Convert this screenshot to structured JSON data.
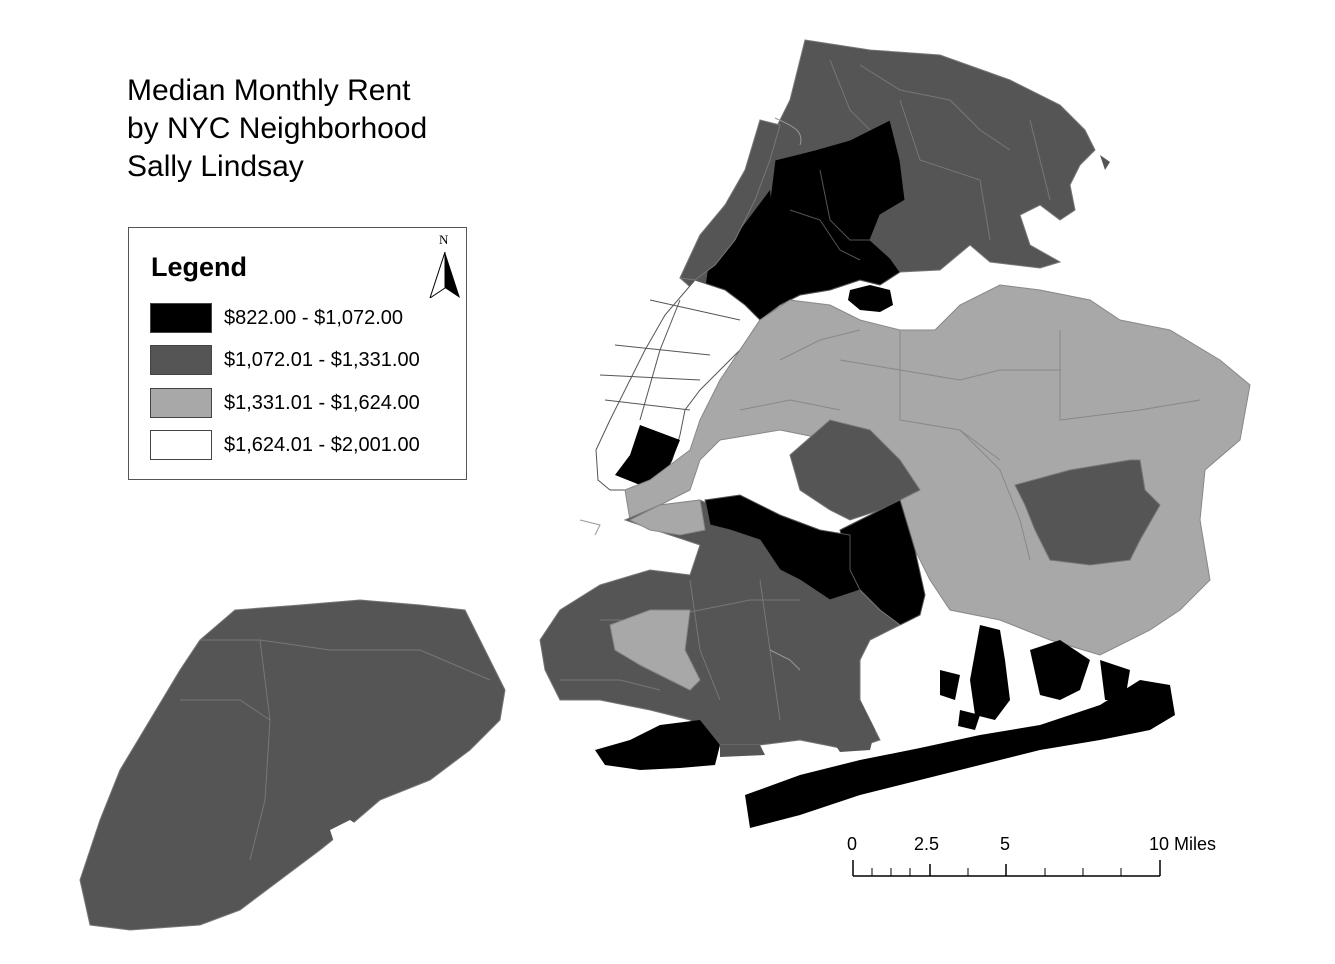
{
  "title": {
    "line1": "Median Monthly Rent",
    "line2": "by NYC Neighborhood",
    "line3": "Sally Lindsay"
  },
  "legend": {
    "heading": "Legend",
    "classes": [
      {
        "label": "$822.00 - $1,072.00",
        "color": "#000000"
      },
      {
        "label": "$1,072.01 - $1,331.00",
        "color": "#555555"
      },
      {
        "label": "$1,331.01 - $1,624.00",
        "color": "#a8a8a8"
      },
      {
        "label": "$1,624.01 - $2,001.00",
        "color": "#ffffff"
      }
    ]
  },
  "north_arrow": {
    "letter": "N"
  },
  "scale_bar": {
    "labels": [
      "0",
      "2.5",
      "5",
      "10 Miles"
    ]
  },
  "map_colors": {
    "class1": "#000000",
    "class2": "#555555",
    "class3": "#a8a8a8",
    "class4": "#ffffff",
    "outline": "#d0d0d0"
  }
}
